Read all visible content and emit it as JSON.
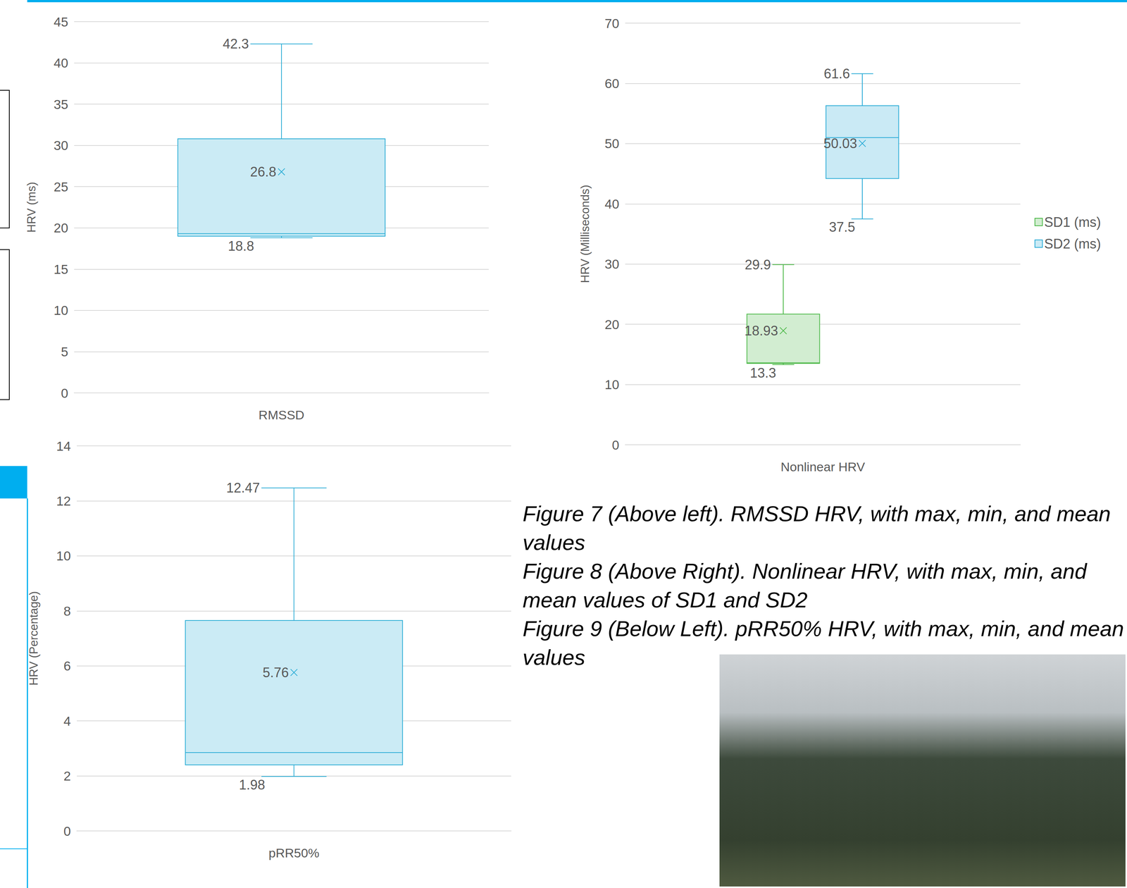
{
  "chart_data": [
    {
      "type": "boxplot",
      "categories": [
        "RMSSD"
      ],
      "ylabel": "HRV (ms)",
      "ylim": [
        0,
        45
      ],
      "yticks": [
        0,
        5,
        10,
        15,
        20,
        25,
        30,
        35,
        40,
        45
      ],
      "grid": true,
      "data_labels": true,
      "marker": "x",
      "series": [
        {
          "color": "#2eaed6",
          "min": [
            18.8
          ],
          "q1": [
            19.0
          ],
          "median": [
            19.3
          ],
          "q3": [
            30.8
          ],
          "max": [
            42.3
          ],
          "mean": [
            26.8
          ]
        }
      ]
    },
    {
      "type": "boxplot",
      "categories": [
        "Nonlinear HRV"
      ],
      "ylabel": "HRV (Milliseconds)",
      "ylim": [
        0,
        70
      ],
      "yticks": [
        0,
        10,
        20,
        30,
        40,
        50,
        60,
        70
      ],
      "grid": true,
      "data_labels": true,
      "marker": "x",
      "legend": "right",
      "series": [
        {
          "name": "SD1 (ms)",
          "color": "#4cb848",
          "min": [
            13.3
          ],
          "q1": [
            13.5
          ],
          "median": [
            13.6
          ],
          "q3": [
            21.7
          ],
          "max": [
            29.9
          ],
          "mean": [
            18.93
          ]
        },
        {
          "name": "SD2 (ms)",
          "color": "#29abd6",
          "min": [
            37.5
          ],
          "q1": [
            44.2
          ],
          "median": [
            51.0
          ],
          "q3": [
            56.3
          ],
          "max": [
            61.6
          ],
          "mean": [
            50.03
          ]
        }
      ]
    },
    {
      "type": "boxplot",
      "categories": [
        "pRR50%"
      ],
      "ylabel": "HRV (Percentage)",
      "ylim": [
        0,
        14
      ],
      "yticks": [
        0,
        2,
        4,
        6,
        8,
        10,
        12,
        14
      ],
      "grid": true,
      "data_labels": true,
      "marker": "x",
      "series": [
        {
          "color": "#2eaed6",
          "min": [
            1.98
          ],
          "q1": [
            2.4
          ],
          "median": [
            2.85
          ],
          "q3": [
            7.65
          ],
          "max": [
            12.47
          ],
          "mean": [
            5.76
          ]
        }
      ]
    }
  ],
  "captions": [
    "Figure 7 (Above left). RMSSD HRV, with max, min, and mean values",
    "Figure 8 (Above Right). Nonlinear HRV, with max, min, and mean values of SD1 and SD2",
    "Figure 9 (Below Left). pRR50% HRV, with max, min, and mean values"
  ]
}
